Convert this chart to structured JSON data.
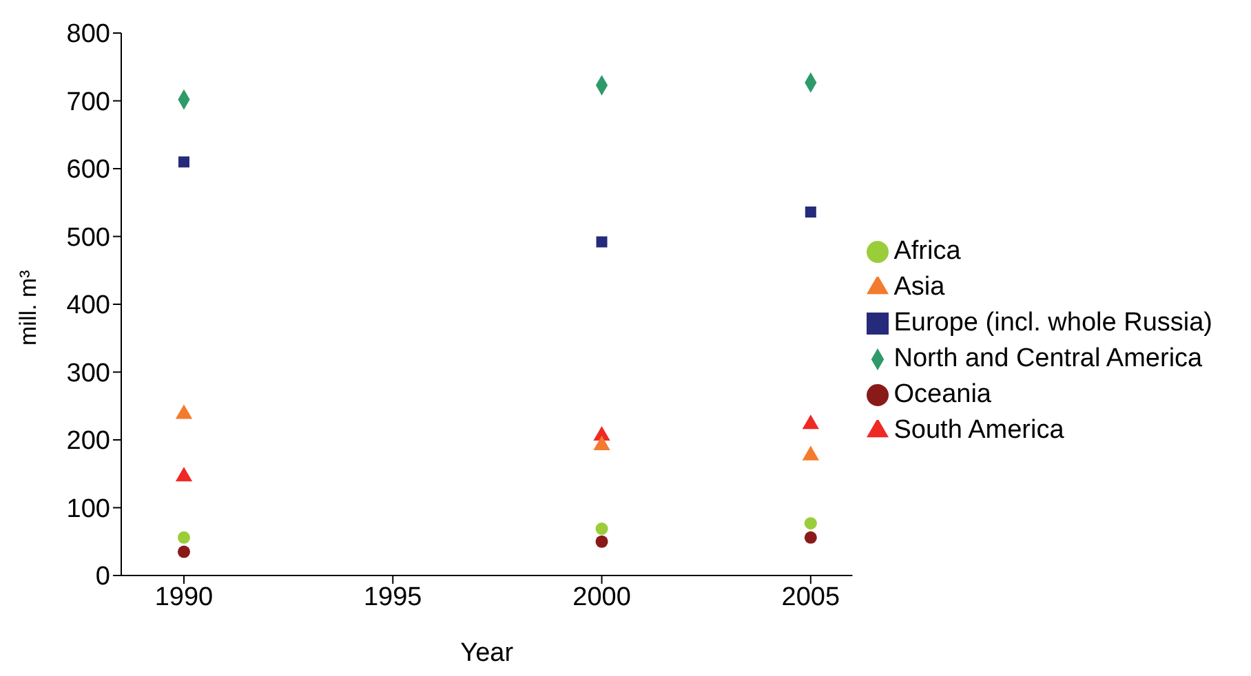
{
  "chart_data": {
    "type": "scatter",
    "xlabel": "Year",
    "ylabel": "mill. m³",
    "x": [
      1990,
      2000,
      2005
    ],
    "xlim": [
      1988.5,
      2006
    ],
    "xticks": [
      1990,
      1995,
      2000,
      2005
    ],
    "ylim": [
      0,
      800
    ],
    "yticks": [
      0,
      100,
      200,
      300,
      400,
      500,
      600,
      700,
      800
    ],
    "grid": false,
    "legend": "right",
    "series": [
      {
        "name": "North and Central America",
        "color": "#2e9a6a",
        "marker": "diamond",
        "values": [
          702,
          723,
          727
        ]
      },
      {
        "name": "Europe (incl. whole Russia)",
        "color": "#262a7a",
        "marker": "square",
        "values": [
          610,
          492,
          536
        ]
      },
      {
        "name": "South America",
        "color": "#ee2a24",
        "marker": "triangle",
        "values": [
          146,
          206,
          223
        ]
      },
      {
        "name": "Asia",
        "color": "#f47a2e",
        "marker": "triangle",
        "values": [
          238,
          192,
          177
        ]
      },
      {
        "name": "Africa",
        "color": "#9acd3a",
        "marker": "circle",
        "values": [
          56,
          69,
          77
        ]
      },
      {
        "name": "Oceania",
        "color": "#8a1a1a",
        "marker": "circle",
        "values": [
          35,
          50,
          56
        ]
      }
    ]
  }
}
